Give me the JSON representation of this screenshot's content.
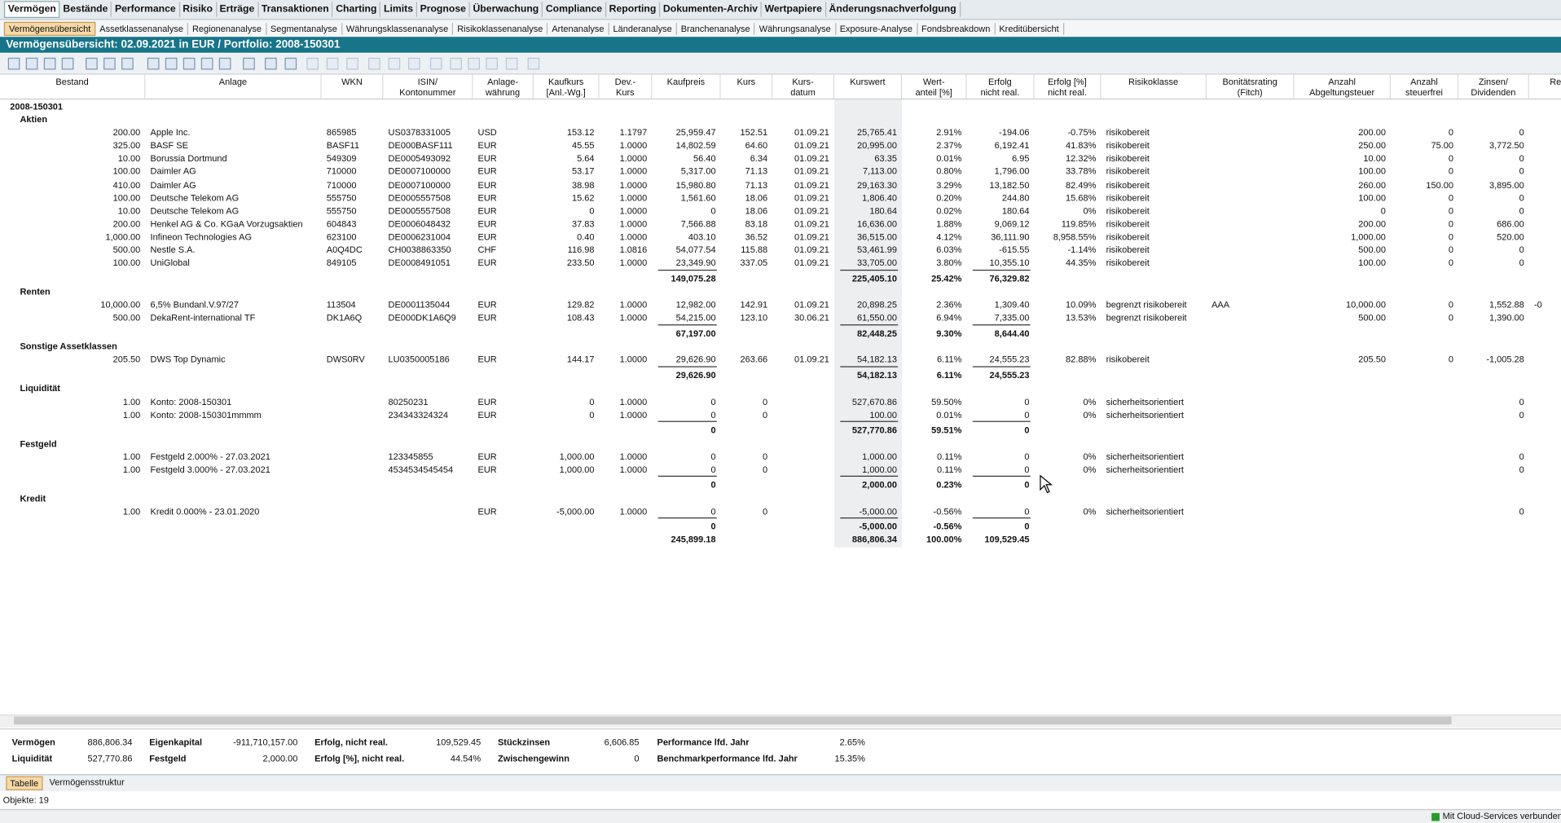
{
  "menu": [
    "Vermögen",
    "Bestände",
    "Performance",
    "Risiko",
    "Erträge",
    "Transaktionen",
    "Charting",
    "Limits",
    "Prognose",
    "Überwachung",
    "Compliance",
    "Reporting",
    "Dokumenten-Archiv",
    "Wertpapiere",
    "Änderungsnachverfolgung"
  ],
  "submenu": [
    "Vermögensübersicht",
    "Assetklassenanalyse",
    "Regionenanalyse",
    "Segmentanalyse",
    "Währungsklassenanalyse",
    "Risikoklassenanalyse",
    "Artenanalyse",
    "Länderanalyse",
    "Branchenanalyse",
    "Währungsanalyse",
    "Exposure-Analyse",
    "Fondsbreakdown",
    "Kreditübersicht"
  ],
  "header": {
    "title": "Vermögensübersicht:  02.09.2021 in EUR / Portfolio: 2008-150301"
  },
  "table": {
    "columns": [
      [
        "Bestand"
      ],
      [
        "Anlage"
      ],
      [
        "WKN"
      ],
      [
        "ISIN/",
        "Kontonummer"
      ],
      [
        "Anlage-",
        "währung"
      ],
      [
        "Kaufkurs",
        "[Anl.-Wg.]"
      ],
      [
        "Dev.-",
        "Kurs"
      ],
      [
        "Kaufpreis"
      ],
      [
        "Kurs"
      ],
      [
        "Kurs-",
        "datum"
      ],
      [
        "Kurswert"
      ],
      [
        "Wert-",
        "anteil [%]"
      ],
      [
        "Erfolg",
        "nicht real."
      ],
      [
        "Erfolg [%]",
        "nicht real."
      ],
      [
        "Risikoklasse"
      ],
      [
        "Bonitätsrating",
        "(Fitch)"
      ],
      [
        "Anzahl",
        "Abgeltungsteuer"
      ],
      [
        "Anzahl",
        "steuerfrei"
      ],
      [
        "Zinsen/",
        "Dividenden"
      ],
      [
        "Rend"
      ]
    ],
    "portfolio": "2008-150301",
    "groups": [
      {
        "name": "Aktien",
        "rows": [
          [
            "200.00",
            "Apple Inc.",
            "865985",
            "US0378331005",
            "USD",
            "153.12",
            "1.1797",
            "25,959.47",
            "152.51",
            "01.09.21",
            "25,765.41",
            "2.91%",
            "-194.06",
            "-0.75%",
            "risikobereit",
            null,
            "200.00",
            "0",
            "0",
            null
          ],
          [
            "325.00",
            "BASF SE",
            "BASF11",
            "DE000BASF111",
            "EUR",
            "45.55",
            "1.0000",
            "14,802.59",
            "64.60",
            "01.09.21",
            "20,995.00",
            "2.37%",
            "6,192.41",
            "41.83%",
            "risikobereit",
            null,
            "250.00",
            "75.00",
            "3,772.50",
            null
          ],
          [
            "10.00",
            "Borussia Dortmund",
            "549309",
            "DE0005493092",
            "EUR",
            "5.64",
            "1.0000",
            "56.40",
            "6.34",
            "01.09.21",
            "63.35",
            "0.01%",
            "6.95",
            "12.32%",
            "risikobereit",
            null,
            "10.00",
            "0",
            "0",
            null
          ],
          [
            "100.00",
            "Daimler AG",
            "710000",
            "DE0007100000",
            "EUR",
            "53.17",
            "1.0000",
            "5,317.00",
            "71.13",
            "01.09.21",
            "7,113.00",
            "0.80%",
            "1,796.00",
            "33.78%",
            "risikobereit",
            null,
            "100.00",
            "0",
            "0",
            null
          ],
          [
            "410.00",
            "Daimler AG",
            "710000",
            "DE0007100000",
            "EUR",
            "38.98",
            "1.0000",
            "15,980.80",
            "71.13",
            "01.09.21",
            "29,163.30",
            "3.29%",
            "13,182.50",
            "82.49%",
            "risikobereit",
            null,
            "260.00",
            "150.00",
            "3,895.00",
            null
          ],
          [
            "100.00",
            "Deutsche Telekom AG",
            "555750",
            "DE0005557508",
            "EUR",
            "15.62",
            "1.0000",
            "1,561.60",
            "18.06",
            "01.09.21",
            "1,806.40",
            "0.20%",
            "244.80",
            "15.68%",
            "risikobereit",
            null,
            "100.00",
            "0",
            "0",
            null
          ],
          [
            "10.00",
            "Deutsche Telekom AG",
            "555750",
            "DE0005557508",
            "EUR",
            "0",
            "1.0000",
            "0",
            "18.06",
            "01.09.21",
            "180.64",
            "0.02%",
            "180.64",
            "0%",
            "risikobereit",
            null,
            "0",
            "0",
            "0",
            null
          ],
          [
            "200.00",
            "Henkel AG & Co. KGaA Vorzugsaktien",
            "604843",
            "DE0006048432",
            "EUR",
            "37.83",
            "1.0000",
            "7,566.88",
            "83.18",
            "01.09.21",
            "16,636.00",
            "1.88%",
            "9,069.12",
            "119.85%",
            "risikobereit",
            null,
            "200.00",
            "0",
            "686.00",
            null
          ],
          [
            "1,000.00",
            "Infineon Technologies AG",
            "623100",
            "DE0006231004",
            "EUR",
            "0.40",
            "1.0000",
            "403.10",
            "36.52",
            "01.09.21",
            "36,515.00",
            "4.12%",
            "36,111.90",
            "8,958.55%",
            "risikobereit",
            null,
            "1,000.00",
            "0",
            "520.00",
            null
          ],
          [
            "500.00",
            "Nestle S.A.",
            "A0Q4DC",
            "CH0038863350",
            "CHF",
            "116.98",
            "1.0816",
            "54,077.54",
            "115.88",
            "01.09.21",
            "53,461.99",
            "6.03%",
            "-615.55",
            "-1.14%",
            "risikobereit",
            null,
            "500.00",
            "0",
            "0",
            null
          ],
          [
            "100.00",
            "UniGlobal",
            "849105",
            "DE0008491051",
            "EUR",
            "233.50",
            "1.0000",
            "23,349.90",
            "337.05",
            "01.09.21",
            "33,705.00",
            "3.80%",
            "10,355.10",
            "44.35%",
            "risikobereit",
            null,
            "100.00",
            "0",
            "0",
            null
          ]
        ],
        "subtotal": {
          "kaufpreis": "149,075.28",
          "kurswert": "225,405.10",
          "wertanteil": "25.42%",
          "erfolg": "76,329.82"
        }
      },
      {
        "name": "Renten",
        "rows": [
          [
            "10,000.00",
            "6,5% Bundanl.V.97/27",
            "113504",
            "DE0001135044",
            "EUR",
            "129.82",
            "1.0000",
            "12,982.00",
            "142.91",
            "01.09.21",
            "20,898.25",
            "2.36%",
            "1,309.40",
            "10.09%",
            "begrenzt risikobereit",
            "AAA",
            "10,000.00",
            "0",
            "1,552.88",
            "-0"
          ],
          [
            "500.00",
            "DekaRent-international TF",
            "DK1A6Q",
            "DE000DK1A6Q9",
            "EUR",
            "108.43",
            "1.0000",
            "54,215.00",
            "123.10",
            "30.06.21",
            "61,550.00",
            "6.94%",
            "7,335.00",
            "13.53%",
            "begrenzt risikobereit",
            null,
            "500.00",
            "0",
            "1,390.00",
            null
          ]
        ],
        "subtotal": {
          "kaufpreis": "67,197.00",
          "kurswert": "82,448.25",
          "wertanteil": "9.30%",
          "erfolg": "8,644.40"
        }
      },
      {
        "name": "Sonstige Assetklassen",
        "rows": [
          [
            "205.50",
            "DWS Top Dynamic",
            "DWS0RV",
            "LU0350005186",
            "EUR",
            "144.17",
            "1.0000",
            "29,626.90",
            "263.66",
            "01.09.21",
            "54,182.13",
            "6.11%",
            "24,555.23",
            "82.88%",
            "risikobereit",
            null,
            "205.50",
            "0",
            "-1,005.28",
            null
          ]
        ],
        "subtotal": {
          "kaufpreis": "29,626.90",
          "kurswert": "54,182.13",
          "wertanteil": "6.11%",
          "erfolg": "24,555.23"
        }
      },
      {
        "name": "Liquidität",
        "rows": [
          [
            "1.00",
            "Konto: 2008-150301",
            null,
            "80250231",
            "EUR",
            "0",
            "1.0000",
            "0",
            "0",
            null,
            "527,670.86",
            "59.50%",
            "0",
            "0%",
            "sicherheitsorientiert",
            null,
            null,
            null,
            "0",
            null
          ],
          [
            "1.00",
            "Konto: 2008-150301mmmm",
            null,
            "234343324324",
            "EUR",
            "0",
            "1.0000",
            "0",
            "0",
            null,
            "100.00",
            "0.01%",
            "0",
            "0%",
            "sicherheitsorientiert",
            null,
            null,
            null,
            "0",
            null
          ]
        ],
        "subtotal": {
          "kaufpreis": "0",
          "kurswert": "527,770.86",
          "wertanteil": "59.51%",
          "erfolg": "0"
        }
      },
      {
        "name": "Festgeld",
        "rows": [
          [
            "1.00",
            "Festgeld 2.000% - 27.03.2021",
            null,
            "123345855",
            "EUR",
            "1,000.00",
            "1.0000",
            "0",
            "0",
            null,
            "1,000.00",
            "0.11%",
            "0",
            "0%",
            "sicherheitsorientiert",
            null,
            null,
            null,
            "0",
            null
          ],
          [
            "1.00",
            "Festgeld 3.000% - 27.03.2021",
            null,
            "4534534545454",
            "EUR",
            "1,000.00",
            "1.0000",
            "0",
            "0",
            null,
            "1,000.00",
            "0.11%",
            "0",
            "0%",
            "sicherheitsorientiert",
            null,
            null,
            null,
            "0",
            null
          ]
        ],
        "subtotal": {
          "kaufpreis": "0",
          "kurswert": "2,000.00",
          "wertanteil": "0.23%",
          "erfolg": "0"
        }
      },
      {
        "name": "Kredit",
        "rows": [
          [
            "1.00",
            "Kredit 0.000% - 23.01.2020",
            null,
            null,
            "EUR",
            "-5,000.00",
            "1.0000",
            "0",
            "0",
            null,
            "-5,000.00",
            "-0.56%",
            "0",
            "0%",
            "sicherheitsorientiert",
            null,
            null,
            null,
            "0",
            null
          ]
        ],
        "subtotal": {
          "kaufpreis": "0",
          "kurswert": "-5,000.00",
          "wertanteil": "-0.56%",
          "erfolg": "0"
        }
      }
    ],
    "total": {
      "kaufpreis": "245,899.18",
      "kurswert": "886,806.34",
      "wertanteil": "100.00%",
      "erfolg": "109,529.45"
    }
  },
  "summary": [
    {
      "label": "Vermögen",
      "value": "886,806.34"
    },
    {
      "label": "Liquidität",
      "value": "527,770.86"
    },
    {
      "label": "Eigenkapital",
      "value": "-911,710,157.00"
    },
    {
      "label": "Festgeld",
      "value": "2,000.00"
    },
    {
      "label": "Erfolg, nicht real.",
      "value": "109,529.45"
    },
    {
      "label": "Erfolg [%], nicht real.",
      "value": "44.54%"
    },
    {
      "label": "Stückzinsen",
      "value": "6,606.85"
    },
    {
      "label": "Zwischengewinn",
      "value": "0"
    },
    {
      "label": "Performance lfd. Jahr",
      "value": "2.65%"
    },
    {
      "label": "Benchmarkperformance lfd. Jahr",
      "value": "15.35%"
    }
  ],
  "bottom_tabs": [
    "Tabelle",
    "Vermögensstruktur"
  ],
  "status": {
    "objects": "Objekte: 19",
    "connection": "Mit Cloud-Services verbunden"
  }
}
